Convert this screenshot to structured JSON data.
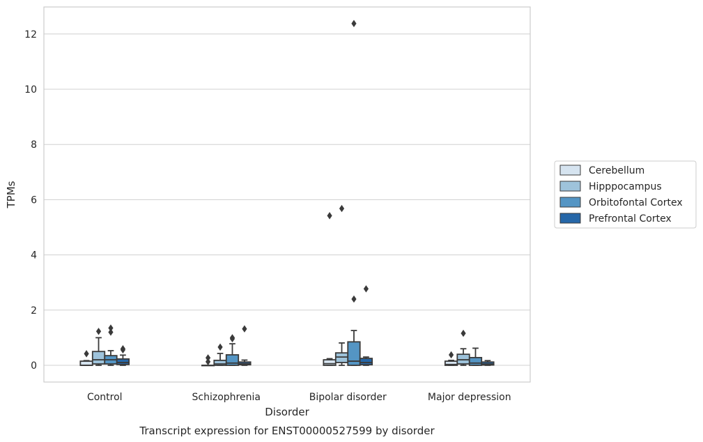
{
  "chart_data": {
    "type": "boxplot",
    "caption": "Transcript expression for ENST00000527599 by disorder",
    "xlabel": "Disorder",
    "ylabel": "TPMs",
    "ylim": [
      -0.6,
      13
    ],
    "yticks": [
      0,
      2,
      4,
      6,
      8,
      10,
      12
    ],
    "grid": "horizontal",
    "legend_position": "right",
    "categories": [
      "Control",
      "Schizophrenia",
      "Bipolar disorder",
      "Major depression"
    ],
    "series": [
      {
        "name": "Cerebellum",
        "color": "#d6e4f0",
        "boxes": [
          {
            "whislo": 0.0,
            "q1": 0.0,
            "med": 0.0,
            "q3": 0.15,
            "whishi": 0.17,
            "fliers": [
              0.42
            ]
          },
          {
            "whislo": 0.0,
            "q1": 0.0,
            "med": 0.0,
            "q3": 0.0,
            "whishi": 0.0,
            "fliers": [
              0.13,
              0.27
            ]
          },
          {
            "whislo": 0.0,
            "q1": 0.0,
            "med": 0.06,
            "q3": 0.2,
            "whishi": 0.24,
            "fliers": [
              5.42
            ]
          },
          {
            "whislo": 0.0,
            "q1": 0.0,
            "med": 0.03,
            "q3": 0.15,
            "whishi": 0.18,
            "fliers": [
              0.38
            ]
          }
        ]
      },
      {
        "name": "Hipppocampus",
        "color": "#9ec3db",
        "boxes": [
          {
            "whislo": 0.0,
            "q1": 0.05,
            "med": 0.2,
            "q3": 0.5,
            "whishi": 1.0,
            "fliers": [
              1.23
            ]
          },
          {
            "whislo": 0.0,
            "q1": 0.0,
            "med": 0.05,
            "q3": 0.18,
            "whishi": 0.43,
            "fliers": [
              0.66
            ]
          },
          {
            "whislo": 0.0,
            "q1": 0.1,
            "med": 0.3,
            "q3": 0.45,
            "whishi": 0.81,
            "fliers": [
              5.68
            ]
          },
          {
            "whislo": 0.0,
            "q1": 0.05,
            "med": 0.2,
            "q3": 0.4,
            "whishi": 0.6,
            "fliers": [
              1.16
            ]
          }
        ]
      },
      {
        "name": "Orbitofontal Cortex",
        "color": "#5495c4",
        "boxes": [
          {
            "whislo": 0.0,
            "q1": 0.05,
            "med": 0.2,
            "q3": 0.35,
            "whishi": 0.53,
            "fliers": [
              1.2,
              1.35
            ]
          },
          {
            "whislo": 0.0,
            "q1": 0.0,
            "med": 0.08,
            "q3": 0.38,
            "whishi": 0.78,
            "fliers": [
              0.96,
              1.0
            ]
          },
          {
            "whislo": 0.0,
            "q1": 0.0,
            "med": 0.15,
            "q3": 0.85,
            "whishi": 1.26,
            "fliers": [
              2.4,
              12.38
            ]
          },
          {
            "whislo": 0.0,
            "q1": 0.0,
            "med": 0.08,
            "q3": 0.28,
            "whishi": 0.62,
            "fliers": []
          }
        ]
      },
      {
        "name": "Prefrontal Cortex",
        "color": "#2667a8",
        "boxes": [
          {
            "whislo": 0.0,
            "q1": 0.03,
            "med": 0.1,
            "q3": 0.23,
            "whishi": 0.37,
            "fliers": [
              0.56,
              0.6
            ]
          },
          {
            "whislo": 0.0,
            "q1": 0.02,
            "med": 0.06,
            "q3": 0.12,
            "whishi": 0.19,
            "fliers": [
              1.32
            ]
          },
          {
            "whislo": 0.0,
            "q1": 0.02,
            "med": 0.1,
            "q3": 0.25,
            "whishi": 0.3,
            "fliers": [
              2.77
            ]
          },
          {
            "whislo": 0.0,
            "q1": 0.01,
            "med": 0.05,
            "q3": 0.12,
            "whishi": 0.17,
            "fliers": []
          }
        ]
      }
    ]
  }
}
